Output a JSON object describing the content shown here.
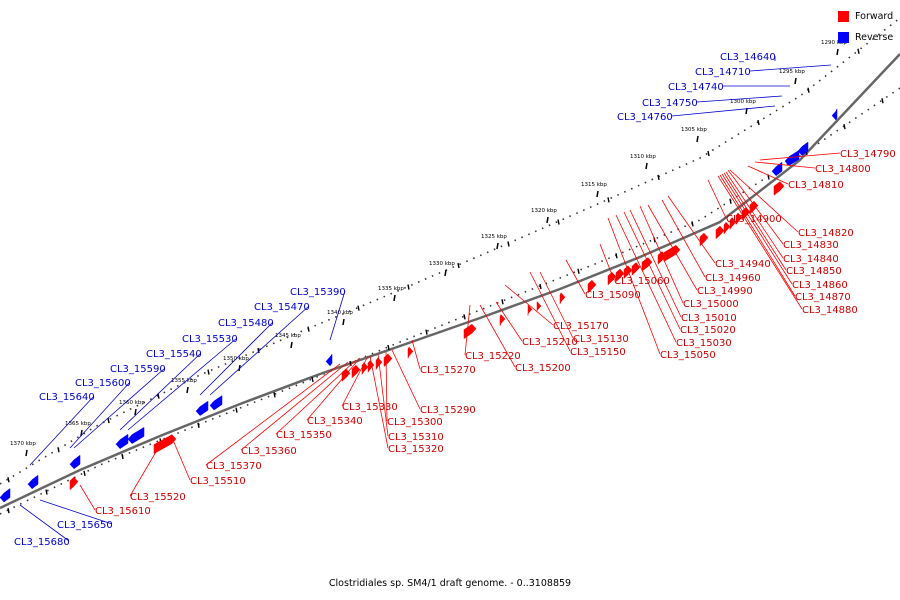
{
  "caption": "Clostridiales sp. SM4/1 draft genome. - 0..3108859",
  "legend": {
    "forward_label": "Forward",
    "forward_color": "#ff0000",
    "reverse_label": "Reverse",
    "reverse_color": "#0000ff"
  },
  "colors": {
    "forward_text": "#cc0000",
    "reverse_text": "#0000cc",
    "backbone": "#666666",
    "ticks": "#000000"
  },
  "ticks": [
    "1290 kbp",
    "1295 kbp",
    "1300 kbp",
    "1305 kbp",
    "1310 kbp",
    "1315 kbp",
    "1320 kbp",
    "1325 kbp",
    "1330 kbp",
    "1335 kbp",
    "1340 kbp",
    "1345 kbp",
    "1350 kbp",
    "1355 kbp",
    "1360 kbp",
    "1365 kbp",
    "1370 kbp"
  ],
  "reverse_genes": [
    "CL3_14640",
    "CL3_14710",
    "CL3_14740",
    "CL3_14750",
    "CL3_14760",
    "CL3_15390",
    "CL3_15470",
    "CL3_15480",
    "CL3_15530",
    "CL3_15540",
    "CL3_15590",
    "CL3_15600",
    "CL3_15640",
    "CL3_15650",
    "CL3_15680"
  ],
  "forward_genes": [
    "CL3_14790",
    "CL3_14800",
    "CL3_14810",
    "CL3_14820",
    "CL3_14830",
    "CL3_14840",
    "CL3_14850",
    "CL3_14860",
    "CL3_14870",
    "CL3_14880",
    "CL3_14900",
    "CL3_14940",
    "CL3_14960",
    "CL3_14990",
    "CL3_15000",
    "CL3_15010",
    "CL3_15020",
    "CL3_15030",
    "CL3_15050",
    "CL3_15060",
    "CL3_15090",
    "CL3_15130",
    "CL3_15150",
    "CL3_15170",
    "CL3_15200",
    "CL3_15210",
    "CL3_15220",
    "CL3_15270",
    "CL3_15290",
    "CL3_15300",
    "CL3_15310",
    "CL3_15320",
    "CL3_15330",
    "CL3_15340",
    "CL3_15350",
    "CL3_15360",
    "CL3_15370",
    "CL3_15510",
    "CL3_15520",
    "CL3_15610"
  ]
}
